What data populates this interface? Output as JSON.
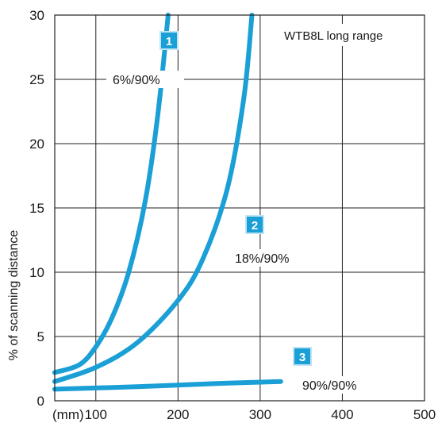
{
  "chart_data": {
    "type": "line",
    "title": "WTB8L long range",
    "xlabel": "(mm)",
    "ylabel": "% of scanning distance",
    "xlim": [
      50,
      500
    ],
    "ylim": [
      0,
      30
    ],
    "x_ticks": [
      "100",
      "200",
      "300",
      "400",
      "500"
    ],
    "y_ticks": [
      "0",
      "5",
      "10",
      "15",
      "20",
      "25",
      "30"
    ],
    "grid": true,
    "line_color": "#1a9fd6",
    "badge_color": "#1a9fd6",
    "series": [
      {
        "marker": "1",
        "name": "6%/90%",
        "points": [
          [
            50,
            2.2
          ],
          [
            80,
            2.8
          ],
          [
            100,
            4.2
          ],
          [
            120,
            6.5
          ],
          [
            140,
            10.0
          ],
          [
            160,
            15.5
          ],
          [
            175,
            22.0
          ],
          [
            188,
            30.0
          ]
        ]
      },
      {
        "marker": "2",
        "name": "18%/90%",
        "points": [
          [
            50,
            1.5
          ],
          [
            100,
            2.6
          ],
          [
            150,
            4.5
          ],
          [
            200,
            7.8
          ],
          [
            230,
            11.0
          ],
          [
            260,
            16.5
          ],
          [
            280,
            23.5
          ],
          [
            290,
            30.0
          ]
        ]
      },
      {
        "marker": "3",
        "name": "90%/90%",
        "points": [
          [
            50,
            0.9
          ],
          [
            150,
            1.1
          ],
          [
            250,
            1.35
          ],
          [
            325,
            1.5
          ]
        ]
      }
    ]
  }
}
